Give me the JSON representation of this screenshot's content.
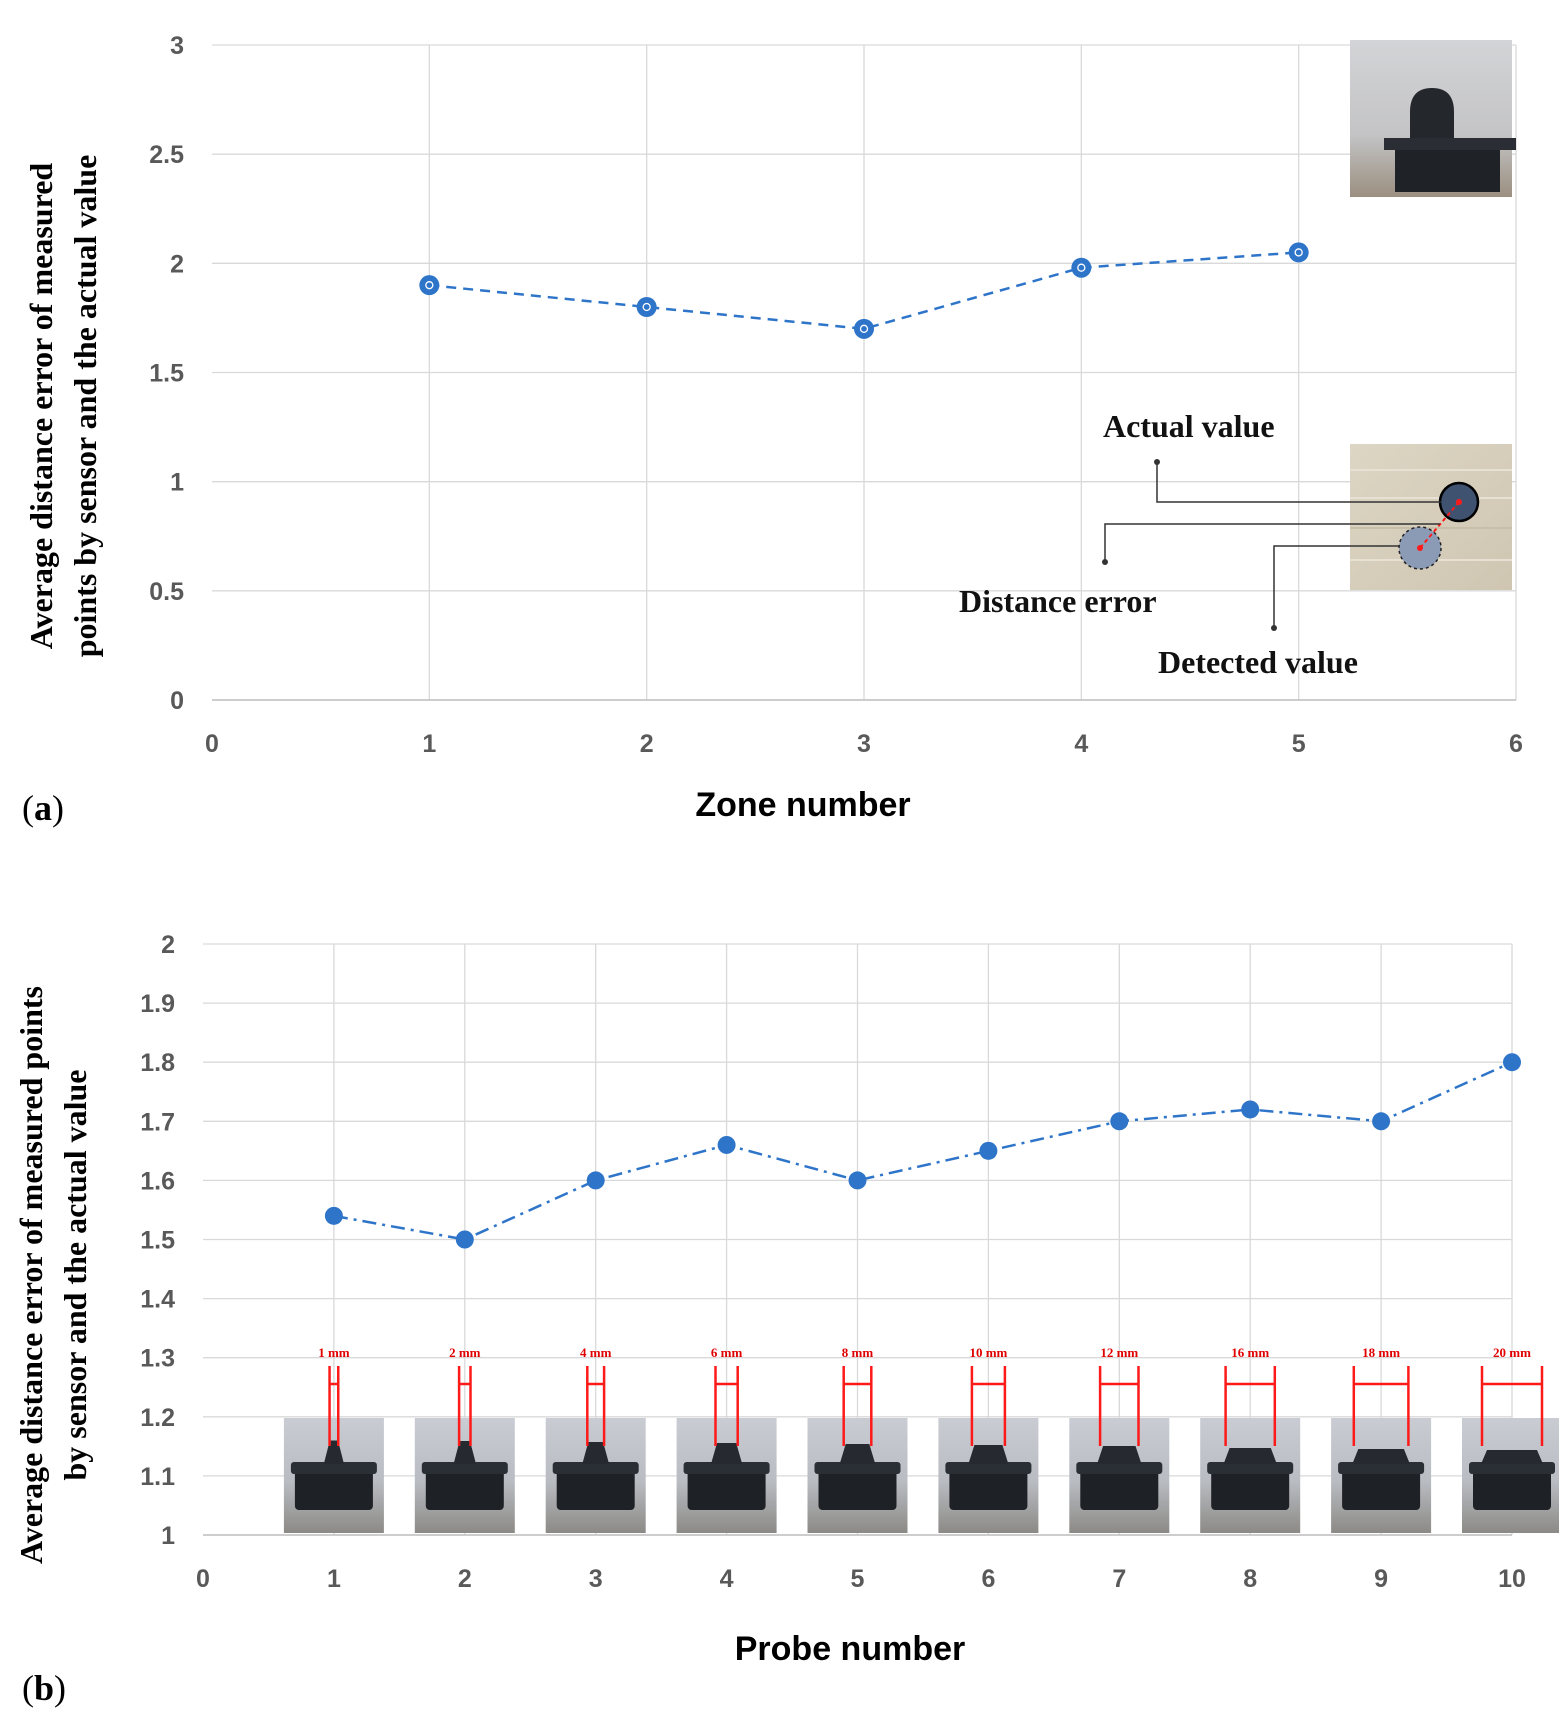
{
  "chart_data": [
    {
      "type": "line",
      "panel_label": "a",
      "xlabel": "Zone number",
      "ylabel_lines": [
        "Average distance error of measured",
        "points by sensor and the actual value"
      ],
      "xlim": [
        0,
        6
      ],
      "ylim": [
        0,
        3
      ],
      "xticks": [
        "0",
        "1",
        "2",
        "3",
        "4",
        "5",
        "6"
      ],
      "yticks": [
        "0",
        "0.5",
        "1",
        "1.5",
        "2",
        "2.5",
        "3"
      ],
      "grid": true,
      "line_style": "dashed",
      "color": "#2e75c9",
      "series": [
        {
          "x": [
            1,
            2,
            3,
            4,
            5
          ],
          "values": [
            1.9,
            1.8,
            1.7,
            1.98,
            2.05
          ]
        }
      ],
      "annotations": {
        "actual": "Actual value",
        "distance_error": "Distance error",
        "detected": "Detected value"
      }
    },
    {
      "type": "line",
      "panel_label": "b",
      "xlabel": "Probe number",
      "ylabel_lines": [
        "Average distance error of measured points",
        "by sensor and the actual value"
      ],
      "xlim": [
        0,
        10
      ],
      "ylim": [
        1,
        2
      ],
      "xticks": [
        "0",
        "1",
        "2",
        "3",
        "4",
        "5",
        "6",
        "7",
        "8",
        "9",
        "10"
      ],
      "yticks": [
        "1",
        "1.1",
        "1.2",
        "1.3",
        "1.4",
        "1.5",
        "1.6",
        "1.7",
        "1.8",
        "1.9",
        "2"
      ],
      "grid": true,
      "line_style": "dash-dot",
      "color": "#2e75c9",
      "series": [
        {
          "x": [
            1,
            2,
            3,
            4,
            5,
            6,
            7,
            8,
            9,
            10
          ],
          "values": [
            1.54,
            1.5,
            1.6,
            1.66,
            1.6,
            1.65,
            1.7,
            1.72,
            1.7,
            1.8
          ]
        }
      ],
      "probe_labels": [
        "1 mm",
        "2 mm",
        "4 mm",
        "6 mm",
        "8 mm",
        "10 mm",
        "12 mm",
        "16 mm",
        "18 mm",
        "20 mm"
      ],
      "probe_sizes_mm": [
        1,
        2,
        4,
        6,
        8,
        10,
        12,
        16,
        18,
        20
      ]
    }
  ]
}
